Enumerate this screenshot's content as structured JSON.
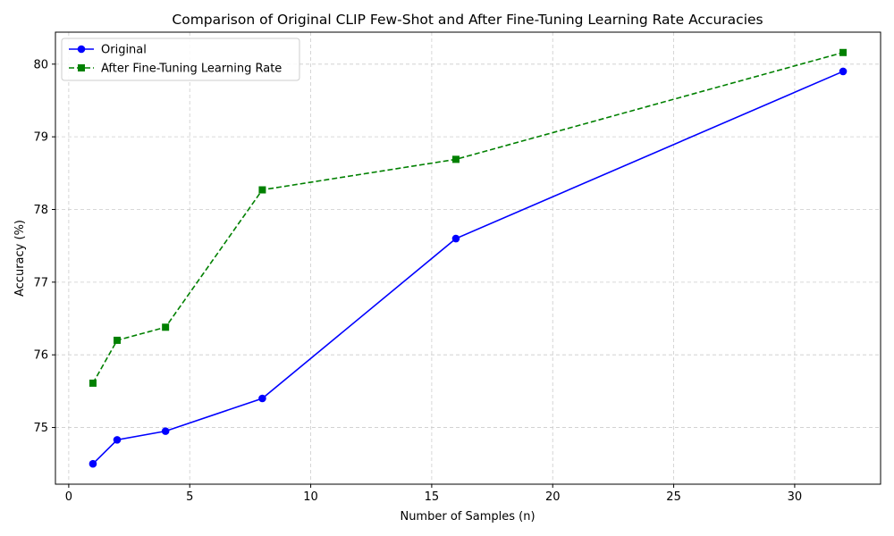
{
  "chart_data": {
    "type": "line",
    "title": "Comparison of Original CLIP Few-Shot and After Fine-Tuning Learning Rate Accuracies",
    "xlabel": "Number of Samples (n)",
    "ylabel": "Accuracy (%)",
    "x": [
      1,
      2,
      4,
      8,
      16,
      32
    ],
    "xlim": [
      -0.55,
      33.55
    ],
    "ylim": [
      74.22,
      80.44
    ],
    "xticks": [
      0,
      5,
      10,
      15,
      20,
      25,
      30
    ],
    "yticks": [
      75,
      76,
      77,
      78,
      79,
      80
    ],
    "grid": true,
    "legend_position": "top-left",
    "series": [
      {
        "name": "Original",
        "values": [
          74.5,
          74.83,
          74.95,
          75.4,
          77.6,
          79.9
        ],
        "color": "#0000ff",
        "linestyle": "solid",
        "marker": "circle"
      },
      {
        "name": "After Fine-Tuning Learning Rate",
        "values": [
          75.61,
          76.2,
          76.38,
          78.27,
          78.69,
          80.16
        ],
        "color": "#008000",
        "linestyle": "dashed",
        "marker": "square"
      }
    ]
  }
}
